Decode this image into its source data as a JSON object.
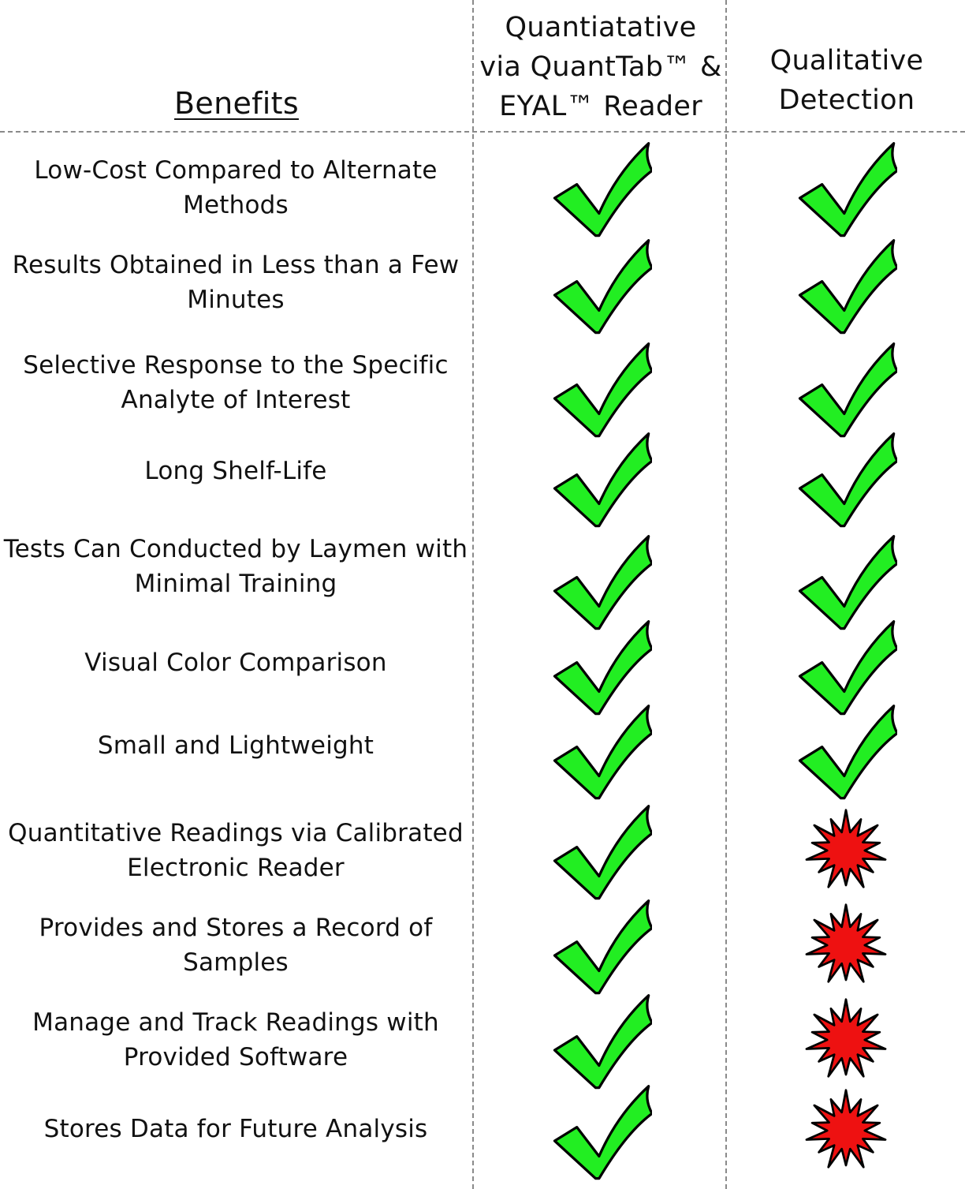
{
  "headers": {
    "benefits": "Benefits",
    "quantitative": [
      "Quantiatative",
      "via QuantTab™ &",
      "EYAL™ Reader"
    ],
    "qualitative": [
      "Qualitative",
      "Detection"
    ]
  },
  "colors": {
    "check_fill": "#22ee22",
    "star_fill": "#ee1111",
    "outline": "#000000",
    "divider": "#8a8a8a"
  },
  "legend_icons": {
    "yes": "checkmark-icon",
    "no": "starburst-icon"
  },
  "rows": [
    {
      "benefit": [
        "Low-Cost Compared to Alternate",
        "Methods"
      ],
      "quantitative": "yes",
      "qualitative": "yes"
    },
    {
      "benefit": [
        "Results Obtained in Less than a Few",
        "Minutes"
      ],
      "quantitative": "yes",
      "qualitative": "yes"
    },
    {
      "benefit": [
        "Selective Response to the Specific",
        "Analyte of Interest"
      ],
      "quantitative": "yes",
      "qualitative": "yes"
    },
    {
      "benefit": [
        "Long Shelf-Life"
      ],
      "quantitative": "yes",
      "qualitative": "yes"
    },
    {
      "benefit": [
        "Tests Can Conducted by Laymen with",
        "Minimal Training"
      ],
      "quantitative": "yes",
      "qualitative": "yes"
    },
    {
      "benefit": [
        "Visual Color Comparison"
      ],
      "quantitative": "yes",
      "qualitative": "yes"
    },
    {
      "benefit": [
        "Small and Lightweight"
      ],
      "quantitative": "yes",
      "qualitative": "yes"
    },
    {
      "benefit": [
        "Quantitative Readings via Calibrated",
        "Electronic Reader"
      ],
      "quantitative": "yes",
      "qualitative": "no"
    },
    {
      "benefit": [
        "Provides and Stores a Record of",
        "Samples"
      ],
      "quantitative": "yes",
      "qualitative": "no"
    },
    {
      "benefit": [
        "Manage and Track Readings with",
        "Provided Software"
      ],
      "quantitative": "yes",
      "qualitative": "no"
    },
    {
      "benefit": [
        "Stores Data for Future Analysis"
      ],
      "quantitative": "yes",
      "qualitative": "no"
    }
  ]
}
